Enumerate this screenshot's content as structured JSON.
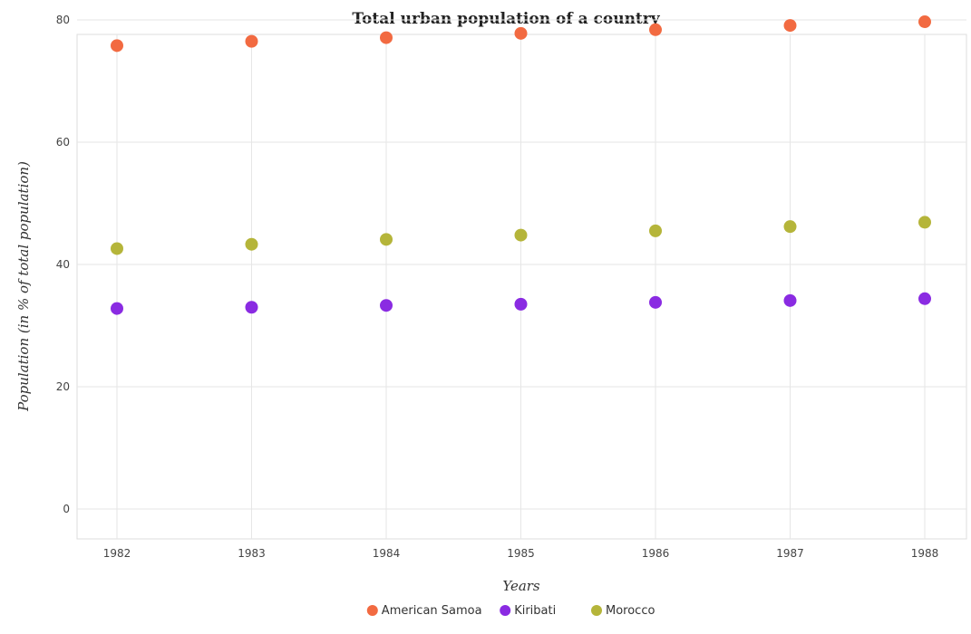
{
  "chart_data": {
    "type": "scatter",
    "title": "Total urban population of a country",
    "xlabel": "Years",
    "ylabel": "Population (in % of total population)",
    "categories": [
      "1982",
      "1983",
      "1984",
      "1985",
      "1986",
      "1987",
      "1988"
    ],
    "ylim": [
      0,
      82
    ],
    "yticks": [
      0,
      20,
      40,
      60,
      80
    ],
    "grid": true,
    "legend_position": "bottom-center",
    "series": [
      {
        "name": "American Samoa",
        "color": "#f26a41",
        "values": [
          75.8,
          76.5,
          77.1,
          77.8,
          78.4,
          79.1,
          79.7
        ]
      },
      {
        "name": "Kiribati",
        "color": "#8a2be2",
        "values": [
          32.8,
          33.0,
          33.3,
          33.5,
          33.8,
          34.1,
          34.4
        ]
      },
      {
        "name": "Morocco",
        "color": "#b5b53a",
        "values": [
          42.6,
          43.3,
          44.1,
          44.8,
          45.5,
          46.2,
          46.9
        ]
      }
    ]
  }
}
